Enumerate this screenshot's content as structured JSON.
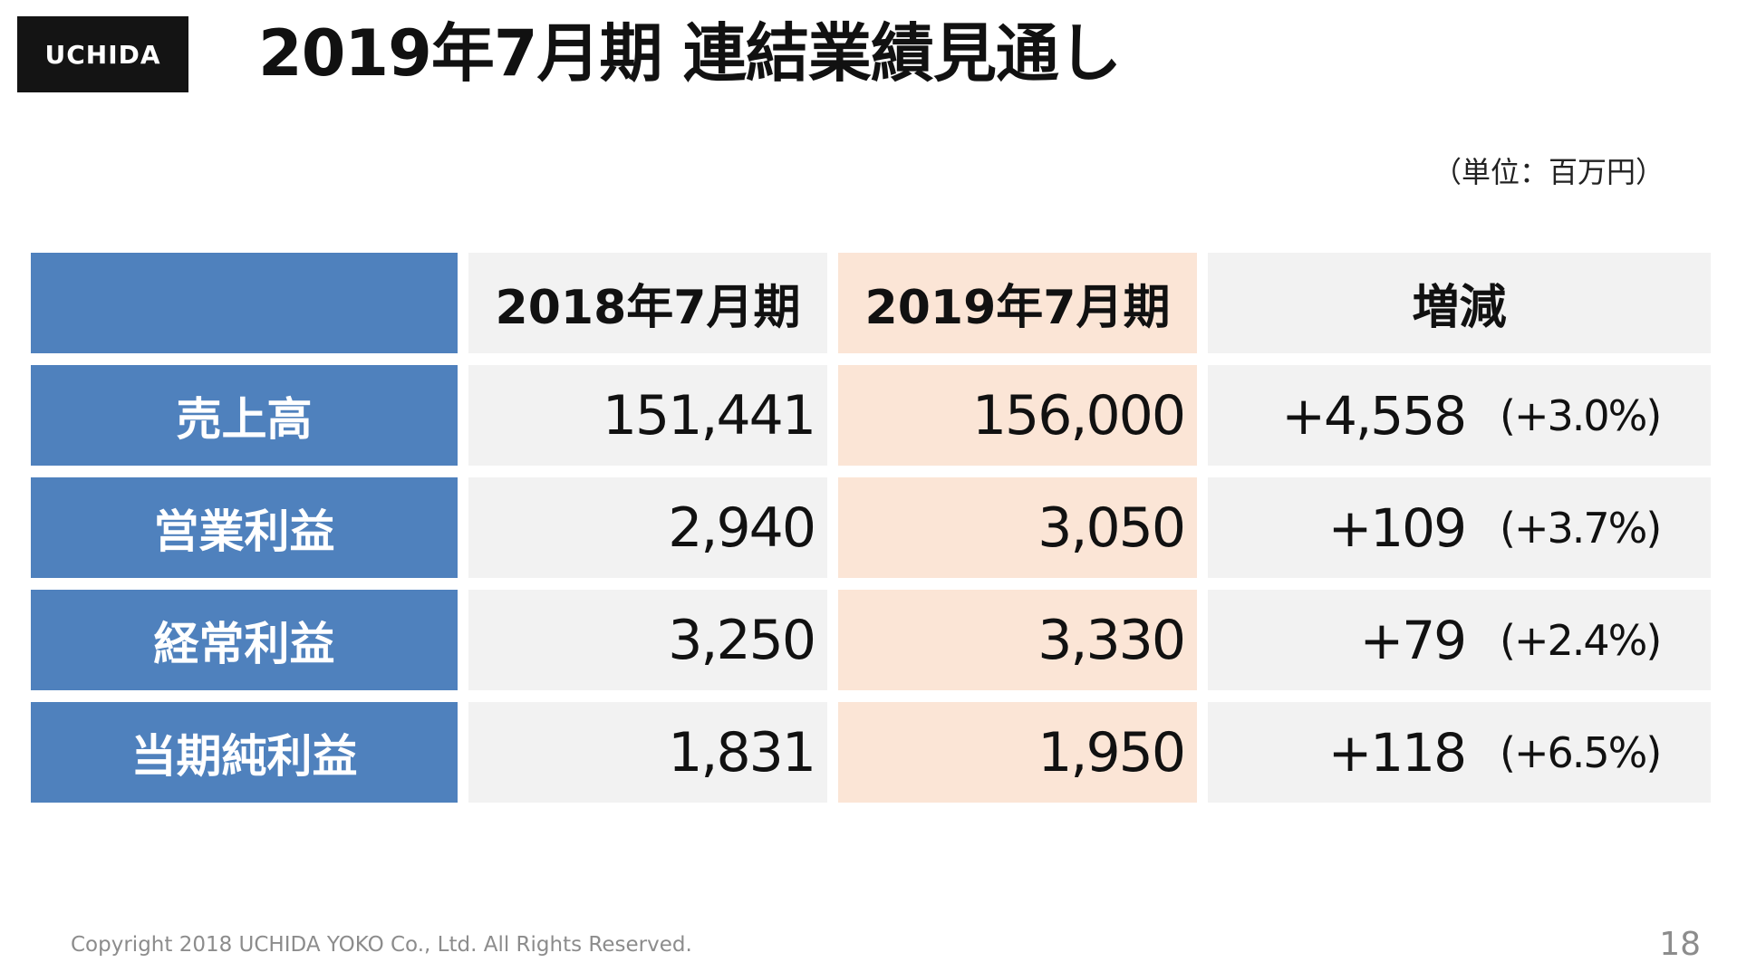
{
  "logo": {
    "text": "UCHIDA"
  },
  "title": "2019年7月期 連結業績見通し",
  "unit": "（単位：百万円）",
  "table": {
    "header": {
      "col1": "2018年7月期",
      "col2": "2019年7月期",
      "col3": "増減"
    },
    "rows": [
      {
        "label": "売上高",
        "fy2018": "151,441",
        "fy2019": "156,000",
        "change": "+4,558",
        "change_pct": "(+3.0%)"
      },
      {
        "label": "営業利益",
        "fy2018": "2,940",
        "fy2019": "3,050",
        "change": "+109",
        "change_pct": "(+3.7%)"
      },
      {
        "label": "経常利益",
        "fy2018": "3,250",
        "fy2019": "3,330",
        "change": "+79",
        "change_pct": "(+2.4%)"
      },
      {
        "label": "当期純利益",
        "fy2018": "1,831",
        "fy2019": "1,950",
        "change": "+118",
        "change_pct": "(+6.5%)"
      }
    ]
  },
  "footer": {
    "copyright": "Copyright 2018 UCHIDA YOKO Co., Ltd. All Rights Reserved.",
    "page_number": "18"
  },
  "colors": {
    "label_blue": "#4f81bd",
    "col_gray": "#f2f2f2",
    "col_peach": "#fbe5d6",
    "logo_bg": "#141414"
  }
}
